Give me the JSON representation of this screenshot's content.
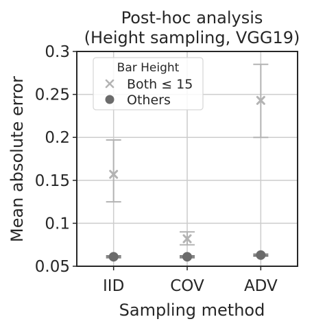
{
  "chart_data": {
    "type": "scatter",
    "title_lines": [
      "Post-hoc analysis",
      "(Height sampling, VGG19)"
    ],
    "xlabel": "Sampling method",
    "ylabel": "Mean absolute error",
    "categories": [
      "IID",
      "COV",
      "ADV"
    ],
    "ylim": [
      0.05,
      0.3
    ],
    "yticks": [
      0.05,
      0.1,
      0.15,
      0.2,
      0.25,
      0.3
    ],
    "ytick_labels": [
      "0.05",
      "0.1",
      "0.15",
      "0.2",
      "0.25",
      "0.3"
    ],
    "grid": true,
    "legend": {
      "title": "Bar Height",
      "placement": "top-left",
      "entries": [
        "Both ≤ 15",
        "Others"
      ]
    },
    "series": [
      {
        "name": "Both ≤ 15",
        "marker": "x",
        "color": "#b3b3b3",
        "values": [
          0.157,
          0.082,
          0.243
        ],
        "err_low": [
          0.125,
          0.075,
          0.2
        ],
        "err_high": [
          0.197,
          0.09,
          0.285
        ]
      },
      {
        "name": "Others",
        "marker": "circle",
        "color": "#6b6b6b",
        "values": [
          0.061,
          0.061,
          0.063
        ],
        "err_low": [
          0.06,
          0.06,
          0.062
        ],
        "err_high": [
          0.062,
          0.062,
          0.064
        ]
      }
    ]
  },
  "colors": {
    "grid": "#cccccc",
    "axes": "#262626",
    "legend_border": "#d6d6d6",
    "text": "#262626"
  }
}
